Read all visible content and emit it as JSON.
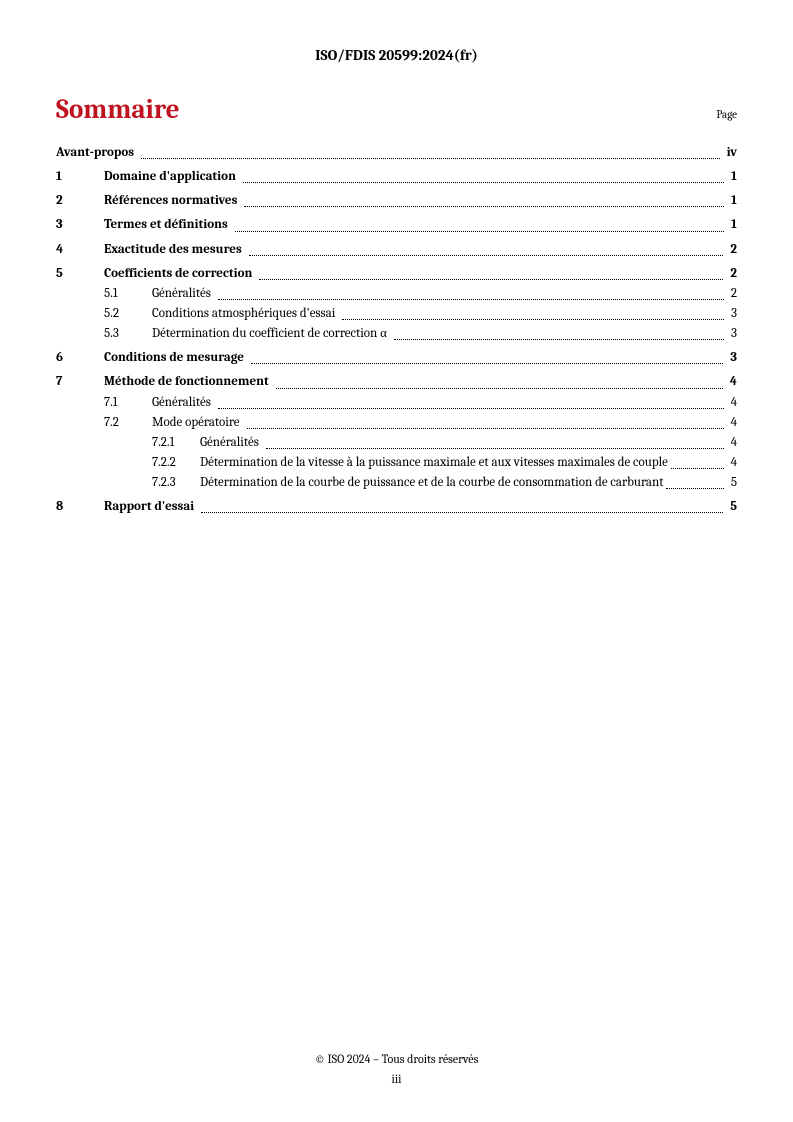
{
  "header_id": "ISO/FDIS 20599:2024(fr)",
  "toc_title": "Sommaire",
  "page_label": "Page",
  "footer_copyright": "© ISO 2024 – Tous droits réservés",
  "footer_page": "iii",
  "colors": {
    "accent": "#c1121f",
    "text": "#000000",
    "background": "#ffffff"
  },
  "entries": [
    {
      "level": 0,
      "num": "",
      "label": "Avant-propos",
      "page": "iv",
      "bold": true
    },
    {
      "level": 1,
      "num": "1",
      "label": "Domaine d'application",
      "page": "1",
      "bold": true,
      "gap": true
    },
    {
      "level": 1,
      "num": "2",
      "label": "Références normatives",
      "page": "1",
      "bold": true,
      "gap": true
    },
    {
      "level": 1,
      "num": "3",
      "label": "Termes et définitions",
      "page": "1",
      "bold": true,
      "gap": true
    },
    {
      "level": 1,
      "num": "4",
      "label": "Exactitude des mesures",
      "page": "2",
      "bold": true,
      "gap": true
    },
    {
      "level": 1,
      "num": "5",
      "label": "Coefficients de correction",
      "page": "2",
      "bold": true,
      "gap": true
    },
    {
      "level": 2,
      "num": "5.1",
      "label": "Généralités",
      "page": "2"
    },
    {
      "level": 2,
      "num": "5.2",
      "label": "Conditions atmosphériques d'essai",
      "page": "3"
    },
    {
      "level": 2,
      "num": "5.3",
      "label": "Détermination du coefficient de correction α",
      "page": "3"
    },
    {
      "level": 1,
      "num": "6",
      "label": "Conditions de mesurage",
      "page": "3",
      "bold": true,
      "gap": true
    },
    {
      "level": 1,
      "num": "7",
      "label": "Méthode de fonctionnement",
      "page": "4",
      "bold": true,
      "gap": true
    },
    {
      "level": 2,
      "num": "7.1",
      "label": "Généralités",
      "page": "4"
    },
    {
      "level": 2,
      "num": "7.2",
      "label": "Mode opératoire",
      "page": "4"
    },
    {
      "level": 3,
      "num": "7.2.1",
      "label": "Généralités",
      "page": "4"
    },
    {
      "level": 3,
      "num": "7.2.2",
      "label": "Détermination de la vitesse à la puissance maximale et aux vitesses maximales de couple",
      "page": "4",
      "wrap": true
    },
    {
      "level": 3,
      "num": "7.2.3",
      "label": "Détermination de la courbe de puissance et de la courbe de consommation de carburant",
      "page": "5",
      "wrap": true
    },
    {
      "level": 1,
      "num": "8",
      "label": "Rapport d'essai",
      "page": "5",
      "bold": true,
      "gap": true
    }
  ]
}
